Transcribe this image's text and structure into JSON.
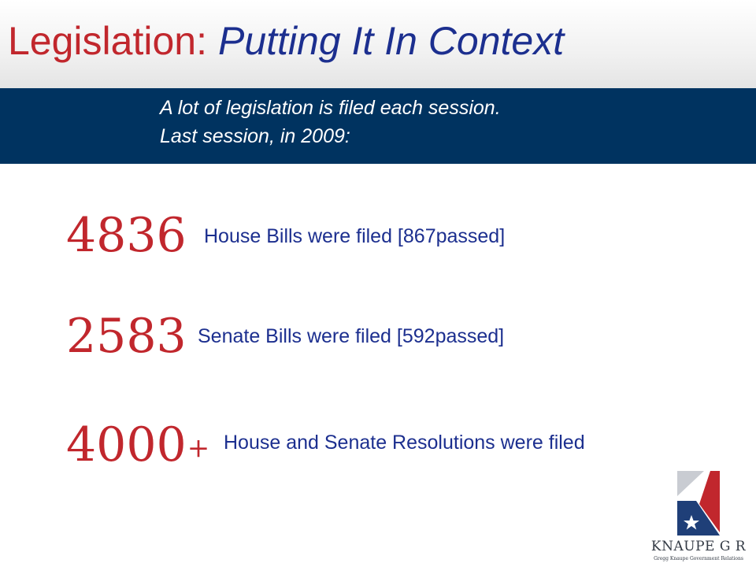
{
  "header": {
    "title_prefix": "Legislation:",
    "title_main": "Putting It In Context"
  },
  "banner": {
    "line1": "A lot of legislation is filed each session.",
    "line2": "Last session, in 2009:"
  },
  "stats": [
    {
      "number": "4836",
      "suffix": "",
      "description": "House Bills were filed [867passed]"
    },
    {
      "number": "2583",
      "suffix": "",
      "description": "Senate Bills were filed [592passed]"
    },
    {
      "number": "4000",
      "suffix": "+",
      "description": "House and Senate Resolutions were filed"
    }
  ],
  "logo": {
    "name": "KNAUPE G R",
    "tagline": "Gregg Knaupe Government Relations",
    "icon": "k-star-logo-icon"
  },
  "colors": {
    "accent_red": "#c1272d",
    "title_blue": "#1c2f8f",
    "banner_navy": "#003360"
  }
}
